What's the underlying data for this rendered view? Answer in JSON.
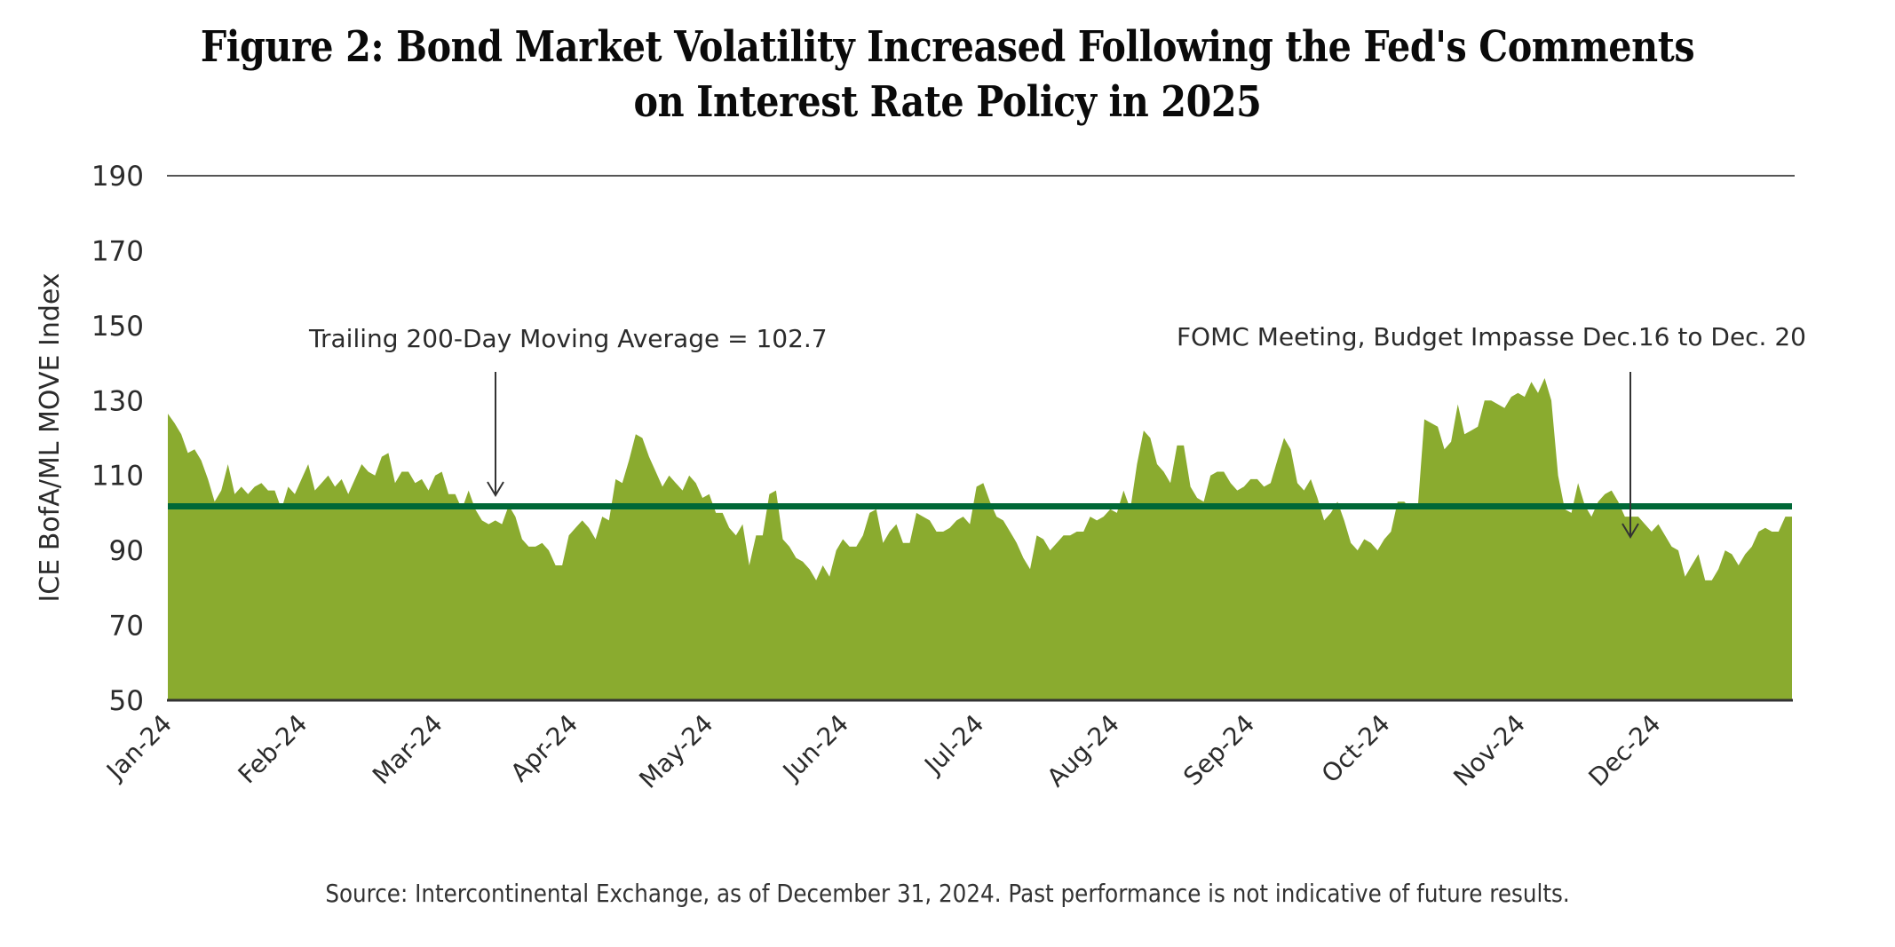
{
  "chart_data": {
    "type": "area",
    "title": [
      "Figure 2: Bond Market Volatility Increased Following the Fed's Comments",
      "on Interest Rate Policy in 2025"
    ],
    "ylabel": "ICE BofA/ML MOVE Index",
    "xlabel": "",
    "ylim": [
      50,
      190
    ],
    "yticks": [
      190,
      170,
      150,
      130,
      110,
      90,
      70,
      50
    ],
    "gridlines": [
      190
    ],
    "x_tick_labels": [
      "Jan-24",
      "Feb-24",
      "Mar-24",
      "Apr-24",
      "May-24",
      "Jun-24",
      "Jul-24",
      "Aug-24",
      "Sep-24",
      "Oct-24",
      "Nov-24",
      "Dec-24"
    ],
    "series": [
      {
        "name": "ICE BofA/ML MOVE Index",
        "color": "#8aab2f",
        "values": [
          126.5,
          124,
          121,
          116,
          117,
          114,
          109,
          103,
          106,
          113,
          105,
          107,
          105,
          107,
          108,
          106,
          106,
          101,
          107,
          105,
          109,
          113,
          106,
          108,
          110,
          107,
          109,
          105,
          109,
          113,
          111,
          110,
          115,
          116,
          108,
          111,
          111,
          108,
          109,
          106,
          110,
          111,
          105,
          105,
          101,
          106,
          101,
          98,
          97,
          98,
          97,
          102,
          99,
          93,
          91,
          91,
          92,
          90,
          86,
          86,
          94,
          96,
          98,
          96,
          93,
          99,
          98,
          109,
          108,
          114,
          121,
          120,
          115,
          111,
          107,
          110,
          108,
          106,
          110,
          108,
          104,
          105,
          100,
          100,
          96,
          94,
          97,
          86,
          94,
          94,
          105,
          106,
          93,
          91,
          88,
          87,
          85,
          82,
          86,
          83,
          90,
          93,
          91,
          91,
          94,
          100,
          101,
          92,
          95,
          97,
          92,
          92,
          100,
          99,
          98,
          95,
          95,
          96,
          98,
          99,
          97,
          107,
          108,
          103,
          99,
          98,
          95,
          92,
          88,
          85,
          94,
          93,
          90,
          92,
          94,
          94,
          95,
          95,
          99,
          98,
          99,
          101,
          100,
          106,
          101,
          113,
          122,
          120,
          113,
          111,
          108,
          118,
          118,
          107,
          104,
          103,
          110,
          111,
          111,
          108,
          106,
          107,
          109,
          109,
          107,
          108,
          114,
          120,
          117,
          108,
          106,
          109,
          104,
          98,
          100,
          103,
          98,
          92,
          90,
          93,
          92,
          90,
          93,
          95,
          103,
          103,
          101,
          101,
          125,
          124,
          123,
          117,
          119,
          129,
          121,
          122,
          123,
          130,
          130,
          129,
          128,
          131,
          132,
          131,
          135,
          132,
          136,
          130,
          110,
          101,
          100,
          108,
          102,
          99,
          103,
          105,
          106,
          103,
          99,
          99,
          99,
          97,
          95,
          97,
          94,
          91,
          90,
          83,
          86,
          89,
          82,
          82,
          85,
          90,
          89,
          86,
          89,
          91,
          95,
          96,
          95,
          95,
          99,
          99
        ]
      },
      {
        "name": "Trailing 200-Day Moving Average",
        "color": "#006837",
        "value": 102.7
      }
    ],
    "annotations": [
      {
        "text": "Trailing 200-Day Moving Average = 102.7",
        "points_to": "Apr-24"
      },
      {
        "text": "FOMC Meeting, Budget Impasse Dec.16 to Dec. 20",
        "points_to": "Dec-24"
      }
    ],
    "source": "Source: Intercontinental Exchange, as of December 31, 2024. Past performance is not indicative of future results."
  }
}
